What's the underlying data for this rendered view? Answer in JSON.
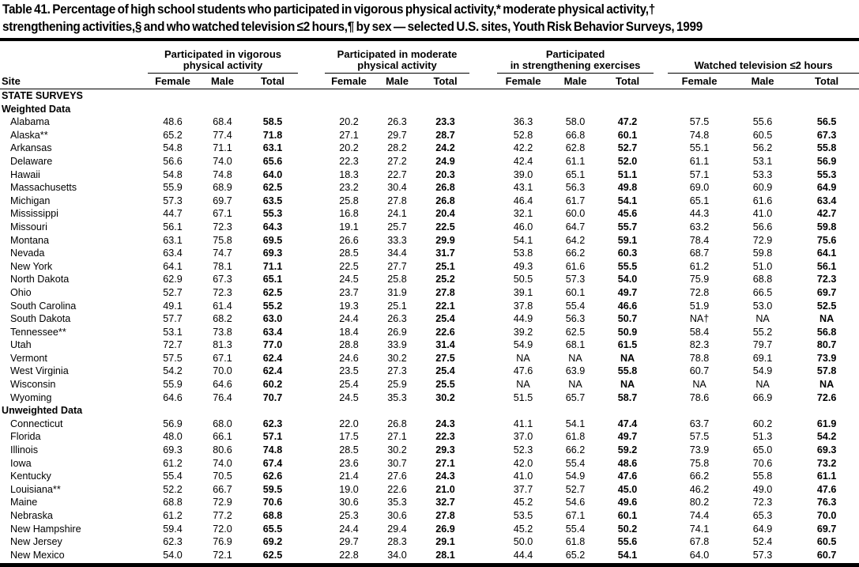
{
  "title": {
    "line1": "Table 41. Percentage of high school students who participated in vigorous physical activity,* moderate physical activity,†",
    "line2": "strengthening activities,§ and who watched television ≤2 hours,¶ by sex — selected U.S. sites, Youth Risk Behavior Surveys, 1999"
  },
  "table": {
    "site_header": "Site",
    "groups": [
      {
        "line1": "Participated in vigorous",
        "line2": "physical activity"
      },
      {
        "line1": "Participated in moderate",
        "line2": "physical activity"
      },
      {
        "line1": "Participated",
        "line2": "in strengthening exercises"
      },
      {
        "line1": "",
        "line2": "Watched television ≤2 hours"
      }
    ],
    "subheaders": [
      "Female",
      "Male",
      "Total"
    ],
    "rows": [
      {
        "type": "section",
        "label": "STATE SURVEYS"
      },
      {
        "type": "section",
        "label": "Weighted Data"
      },
      {
        "type": "data",
        "site": "Alabama",
        "values": [
          "48.6",
          "68.4",
          "58.5",
          "20.2",
          "26.3",
          "23.3",
          "36.3",
          "58.0",
          "47.2",
          "57.5",
          "55.6",
          "56.5"
        ]
      },
      {
        "type": "data",
        "site": "Alaska**",
        "values": [
          "65.2",
          "77.4",
          "71.8",
          "27.1",
          "29.7",
          "28.7",
          "52.8",
          "66.8",
          "60.1",
          "74.8",
          "60.5",
          "67.3"
        ]
      },
      {
        "type": "data",
        "site": "Arkansas",
        "values": [
          "54.8",
          "71.1",
          "63.1",
          "20.2",
          "28.2",
          "24.2",
          "42.2",
          "62.8",
          "52.7",
          "55.1",
          "56.2",
          "55.8"
        ]
      },
      {
        "type": "data",
        "site": "Delaware",
        "values": [
          "56.6",
          "74.0",
          "65.6",
          "22.3",
          "27.2",
          "24.9",
          "42.4",
          "61.1",
          "52.0",
          "61.1",
          "53.1",
          "56.9"
        ]
      },
      {
        "type": "data",
        "site": "Hawaii",
        "values": [
          "54.8",
          "74.8",
          "64.0",
          "18.3",
          "22.7",
          "20.3",
          "39.0",
          "65.1",
          "51.1",
          "57.1",
          "53.3",
          "55.3"
        ]
      },
      {
        "type": "data",
        "site": "Massachusetts",
        "values": [
          "55.9",
          "68.9",
          "62.5",
          "23.2",
          "30.4",
          "26.8",
          "43.1",
          "56.3",
          "49.8",
          "69.0",
          "60.9",
          "64.9"
        ]
      },
      {
        "type": "data",
        "site": "Michigan",
        "values": [
          "57.3",
          "69.7",
          "63.5",
          "25.8",
          "27.8",
          "26.8",
          "46.4",
          "61.7",
          "54.1",
          "65.1",
          "61.6",
          "63.4"
        ]
      },
      {
        "type": "data",
        "site": "Mississippi",
        "values": [
          "44.7",
          "67.1",
          "55.3",
          "16.8",
          "24.1",
          "20.4",
          "32.1",
          "60.0",
          "45.6",
          "44.3",
          "41.0",
          "42.7"
        ]
      },
      {
        "type": "data",
        "site": "Missouri",
        "values": [
          "56.1",
          "72.3",
          "64.3",
          "19.1",
          "25.7",
          "22.5",
          "46.0",
          "64.7",
          "55.7",
          "63.2",
          "56.6",
          "59.8"
        ]
      },
      {
        "type": "data",
        "site": "Montana",
        "values": [
          "63.1",
          "75.8",
          "69.5",
          "26.6",
          "33.3",
          "29.9",
          "54.1",
          "64.2",
          "59.1",
          "78.4",
          "72.9",
          "75.6"
        ]
      },
      {
        "type": "data",
        "site": "Nevada",
        "values": [
          "63.4",
          "74.7",
          "69.3",
          "28.5",
          "34.4",
          "31.7",
          "53.8",
          "66.2",
          "60.3",
          "68.7",
          "59.8",
          "64.1"
        ]
      },
      {
        "type": "data",
        "site": "New York",
        "values": [
          "64.1",
          "78.1",
          "71.1",
          "22.5",
          "27.7",
          "25.1",
          "49.3",
          "61.6",
          "55.5",
          "61.2",
          "51.0",
          "56.1"
        ]
      },
      {
        "type": "data",
        "site": "North Dakota",
        "values": [
          "62.9",
          "67.3",
          "65.1",
          "24.5",
          "25.8",
          "25.2",
          "50.5",
          "57.3",
          "54.0",
          "75.9",
          "68.8",
          "72.3"
        ]
      },
      {
        "type": "data",
        "site": "Ohio",
        "values": [
          "52.7",
          "72.3",
          "62.5",
          "23.7",
          "31.9",
          "27.8",
          "39.1",
          "60.1",
          "49.7",
          "72.8",
          "66.5",
          "69.7"
        ]
      },
      {
        "type": "data",
        "site": "South Carolina",
        "values": [
          "49.1",
          "61.4",
          "55.2",
          "19.3",
          "25.1",
          "22.1",
          "37.8",
          "55.4",
          "46.6",
          "51.9",
          "53.0",
          "52.5"
        ]
      },
      {
        "type": "data",
        "site": "South Dakota",
        "values": [
          "57.7",
          "68.2",
          "63.0",
          "24.4",
          "26.3",
          "25.4",
          "44.9",
          "56.3",
          "50.7",
          "NA†",
          "NA",
          "NA"
        ]
      },
      {
        "type": "data",
        "site": "Tennessee**",
        "values": [
          "53.1",
          "73.8",
          "63.4",
          "18.4",
          "26.9",
          "22.6",
          "39.2",
          "62.5",
          "50.9",
          "58.4",
          "55.2",
          "56.8"
        ]
      },
      {
        "type": "data",
        "site": "Utah",
        "values": [
          "72.7",
          "81.3",
          "77.0",
          "28.8",
          "33.9",
          "31.4",
          "54.9",
          "68.1",
          "61.5",
          "82.3",
          "79.7",
          "80.7"
        ]
      },
      {
        "type": "data",
        "site": "Vermont",
        "values": [
          "57.5",
          "67.1",
          "62.4",
          "24.6",
          "30.2",
          "27.5",
          "NA",
          "NA",
          "NA",
          "78.8",
          "69.1",
          "73.9"
        ]
      },
      {
        "type": "data",
        "site": "West Virginia",
        "values": [
          "54.2",
          "70.0",
          "62.4",
          "23.5",
          "27.3",
          "25.4",
          "47.6",
          "63.9",
          "55.8",
          "60.7",
          "54.9",
          "57.8"
        ]
      },
      {
        "type": "data",
        "site": "Wisconsin",
        "values": [
          "55.9",
          "64.6",
          "60.2",
          "25.4",
          "25.9",
          "25.5",
          "NA",
          "NA",
          "NA",
          "NA",
          "NA",
          "NA"
        ]
      },
      {
        "type": "data",
        "site": "Wyoming",
        "values": [
          "64.6",
          "76.4",
          "70.7",
          "24.5",
          "35.3",
          "30.2",
          "51.5",
          "65.7",
          "58.7",
          "78.6",
          "66.9",
          "72.6"
        ]
      },
      {
        "type": "section",
        "label": "Unweighted Data"
      },
      {
        "type": "data",
        "site": "Connecticut",
        "values": [
          "56.9",
          "68.0",
          "62.3",
          "22.0",
          "26.8",
          "24.3",
          "41.1",
          "54.1",
          "47.4",
          "63.7",
          "60.2",
          "61.9"
        ]
      },
      {
        "type": "data",
        "site": "Florida",
        "values": [
          "48.0",
          "66.1",
          "57.1",
          "17.5",
          "27.1",
          "22.3",
          "37.0",
          "61.8",
          "49.7",
          "57.5",
          "51.3",
          "54.2"
        ]
      },
      {
        "type": "data",
        "site": "Illinois",
        "values": [
          "69.3",
          "80.6",
          "74.8",
          "28.5",
          "30.2",
          "29.3",
          "52.3",
          "66.2",
          "59.2",
          "73.9",
          "65.0",
          "69.3"
        ]
      },
      {
        "type": "data",
        "site": "Iowa",
        "values": [
          "61.2",
          "74.0",
          "67.4",
          "23.6",
          "30.7",
          "27.1",
          "42.0",
          "55.4",
          "48.6",
          "75.8",
          "70.6",
          "73.2"
        ]
      },
      {
        "type": "data",
        "site": "Kentucky",
        "values": [
          "55.4",
          "70.5",
          "62.6",
          "21.4",
          "27.6",
          "24.3",
          "41.0",
          "54.9",
          "47.6",
          "66.2",
          "55.8",
          "61.1"
        ]
      },
      {
        "type": "data",
        "site": "Louisiana**",
        "values": [
          "52.2",
          "66.7",
          "59.5",
          "19.0",
          "22.6",
          "21.0",
          "37.7",
          "52.7",
          "45.0",
          "46.2",
          "49.0",
          "47.6"
        ]
      },
      {
        "type": "data",
        "site": "Maine",
        "values": [
          "68.8",
          "72.9",
          "70.6",
          "30.6",
          "35.3",
          "32.7",
          "45.2",
          "54.6",
          "49.6",
          "80.2",
          "72.3",
          "76.3"
        ]
      },
      {
        "type": "data",
        "site": "Nebraska",
        "values": [
          "61.2",
          "77.2",
          "68.8",
          "25.3",
          "30.6",
          "27.8",
          "53.5",
          "67.1",
          "60.1",
          "74.4",
          "65.3",
          "70.0"
        ]
      },
      {
        "type": "data",
        "site": "New Hampshire",
        "values": [
          "59.4",
          "72.0",
          "65.5",
          "24.4",
          "29.4",
          "26.9",
          "45.2",
          "55.4",
          "50.2",
          "74.1",
          "64.9",
          "69.7"
        ]
      },
      {
        "type": "data",
        "site": "New Jersey",
        "values": [
          "62.3",
          "76.9",
          "69.2",
          "29.7",
          "28.3",
          "29.1",
          "50.0",
          "61.8",
          "55.6",
          "67.8",
          "52.4",
          "60.5"
        ]
      },
      {
        "type": "data",
        "site": "New Mexico",
        "values": [
          "54.0",
          "72.1",
          "62.5",
          "22.8",
          "34.0",
          "28.1",
          "44.4",
          "65.2",
          "54.1",
          "64.0",
          "57.3",
          "60.7"
        ]
      }
    ]
  }
}
